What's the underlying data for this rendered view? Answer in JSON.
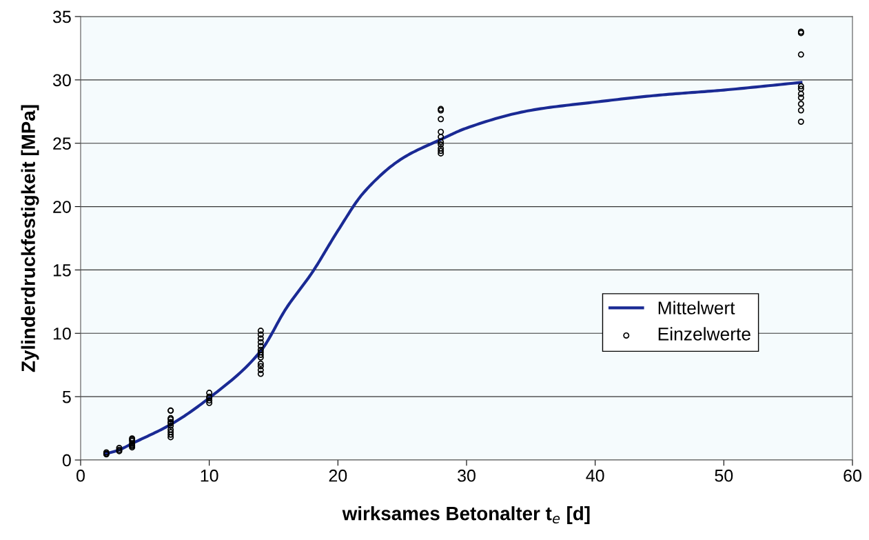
{
  "chart_data": {
    "type": "scatter",
    "xlabel": "wirksames Betonalter t$_{e}$ [d]",
    "ylabel": "Zylinderdruckfestigkeit [MPa]",
    "xlim": [
      0,
      60
    ],
    "xticks": [
      0,
      10,
      20,
      30,
      40,
      50,
      60
    ],
    "ylim": [
      0,
      35
    ],
    "yticks": [
      0,
      5,
      10,
      15,
      20,
      25,
      30,
      35
    ],
    "grid": "y",
    "legend": "right",
    "series": [
      {
        "name": "Mittelwert",
        "type": "line",
        "color": "#1a2a94",
        "marker": "none",
        "line_style": "solid",
        "x": [
          2,
          3,
          4,
          7,
          10,
          14,
          16,
          18,
          20,
          22,
          25,
          28,
          30,
          35,
          40,
          45,
          50,
          56
        ],
        "values": [
          0.5,
          0.8,
          1.3,
          2.8,
          4.9,
          8.6,
          12,
          14.8,
          18.1,
          21.1,
          23.8,
          25.3,
          26.2,
          27.6,
          28.25,
          28.8,
          29.2,
          29.8
        ]
      },
      {
        "name": "Einzelwerte",
        "color": "#000000",
        "marker": "circle",
        "x": [
          2,
          2,
          2,
          3,
          3,
          3,
          4,
          4,
          4,
          4,
          4,
          4,
          4,
          7,
          7,
          7,
          7,
          7,
          7,
          7,
          7,
          7,
          7,
          7,
          10,
          10,
          10,
          10,
          10,
          14,
          14,
          14,
          14,
          14,
          14,
          14,
          14,
          14,
          14,
          14,
          14,
          14,
          28,
          28,
          28,
          28,
          28,
          28,
          28,
          28,
          28,
          28,
          56,
          56,
          56,
          56,
          56,
          56,
          56,
          56,
          56,
          56
        ],
        "values": [
          0.45,
          0.5,
          0.6,
          0.7,
          0.8,
          0.95,
          1.0,
          1.1,
          1.2,
          1.3,
          1.5,
          1.6,
          1.7,
          1.8,
          2.0,
          2.2,
          2.4,
          2.7,
          2.9,
          3.0,
          3.2,
          3.3,
          3.9,
          3.9,
          4.5,
          4.7,
          4.9,
          5.0,
          5.3,
          6.8,
          7.1,
          7.4,
          7.6,
          8.1,
          8.3,
          8.5,
          8.7,
          9.0,
          9.3,
          9.6,
          9.9,
          10.2,
          24.2,
          24.4,
          24.6,
          24.9,
          25.1,
          25.5,
          25.9,
          26.9,
          27.6,
          27.7,
          26.7,
          27.6,
          28.1,
          28.6,
          28.9,
          29.3,
          29.5,
          32.0,
          33.7,
          33.8
        ]
      }
    ]
  }
}
